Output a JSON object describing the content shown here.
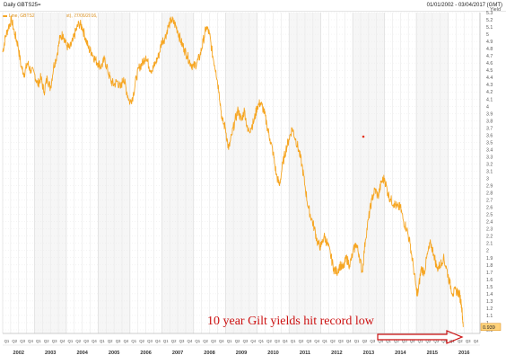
{
  "header": {
    "title": "Daily GBTS25=",
    "date_range": "01/01/2002 - 03/04/2017 (GMT)"
  },
  "legend": {
    "text": "Line, GBTS25=, Bid Yield(Last), 27/06/2016, 0.939"
  },
  "annotation": {
    "text": "10 year Gilt yields hit record low"
  },
  "colors": {
    "line": "#f6a623",
    "annotation": "#cc1111",
    "grid": "#e8e8e8",
    "axis_text": "#555555",
    "marker": "#ff6600"
  },
  "chart_data": {
    "type": "line",
    "title": "",
    "xlabel": "",
    "ylabel": "Yield",
    "x_range": [
      2002.0,
      2017.0
    ],
    "ylim": [
      0.85,
      5.3
    ],
    "y_ticks": [
      5.3,
      5.2,
      5.1,
      5.0,
      4.9,
      4.8,
      4.7,
      4.6,
      4.5,
      4.4,
      4.3,
      4.2,
      4.1,
      4.0,
      3.9,
      3.8,
      3.7,
      3.6,
      3.5,
      3.4,
      3.3,
      3.2,
      3.1,
      3.0,
      2.9,
      2.8,
      2.7,
      2.6,
      2.5,
      2.4,
      2.3,
      2.2,
      2.1,
      2.0,
      1.9,
      1.8,
      1.7,
      1.6,
      1.5,
      1.4,
      1.3,
      1.2,
      1.1,
      1.0,
      0.9
    ],
    "y_tick_labels": [
      "5.3",
      "5.2",
      "5.1",
      "5",
      "4.9",
      "4.8",
      "4.7",
      "4.6",
      "4.5",
      "4.4",
      "4.3",
      "4.2",
      "4.1",
      "4",
      "3.9",
      "3.8",
      "3.7",
      "3.6",
      "3.5",
      "3.4",
      "3.3",
      "3.2",
      "3.1",
      "3",
      "2.9",
      "2.8",
      "2.7",
      "2.6",
      "2.5",
      "2.4",
      "2.3",
      "2.2",
      "2.1",
      "2",
      "1.9",
      "1.8",
      "1.7",
      "1.6",
      "1.5",
      "1.4",
      "1.3",
      "1.2",
      "1.1",
      "1",
      "0.9"
    ],
    "years": [
      "2002",
      "2003",
      "2004",
      "2005",
      "2006",
      "2007",
      "2008",
      "2009",
      "2010",
      "2011",
      "2012",
      "2013",
      "2014",
      "2015",
      "2016"
    ],
    "quarter_labels": [
      "Q1",
      "Q2",
      "Q3",
      "Q4"
    ],
    "last_value_label": "0.939",
    "series": [
      {
        "name": "GBTS25=",
        "points": [
          [
            2002.0,
            4.75
          ],
          [
            2002.08,
            4.95
          ],
          [
            2002.18,
            5.1
          ],
          [
            2002.28,
            5.2
          ],
          [
            2002.38,
            5.0
          ],
          [
            2002.48,
            4.85
          ],
          [
            2002.58,
            4.55
          ],
          [
            2002.68,
            4.45
          ],
          [
            2002.78,
            4.6
          ],
          [
            2002.88,
            4.5
          ],
          [
            2003.0,
            4.45
          ],
          [
            2003.1,
            4.3
          ],
          [
            2003.2,
            4.4
          ],
          [
            2003.3,
            4.2
          ],
          [
            2003.4,
            4.4
          ],
          [
            2003.5,
            4.25
          ],
          [
            2003.6,
            4.55
          ],
          [
            2003.7,
            4.7
          ],
          [
            2003.8,
            4.95
          ],
          [
            2003.9,
            5.0
          ],
          [
            2004.0,
            4.85
          ],
          [
            2004.1,
            4.8
          ],
          [
            2004.2,
            4.9
          ],
          [
            2004.3,
            5.05
          ],
          [
            2004.4,
            5.15
          ],
          [
            2004.5,
            5.1
          ],
          [
            2004.6,
            4.95
          ],
          [
            2004.7,
            4.8
          ],
          [
            2004.8,
            4.75
          ],
          [
            2004.9,
            4.65
          ],
          [
            2005.0,
            4.6
          ],
          [
            2005.1,
            4.55
          ],
          [
            2005.2,
            4.65
          ],
          [
            2005.3,
            4.5
          ],
          [
            2005.4,
            4.35
          ],
          [
            2005.5,
            4.3
          ],
          [
            2005.6,
            4.35
          ],
          [
            2005.7,
            4.25
          ],
          [
            2005.8,
            4.4
          ],
          [
            2005.9,
            4.2
          ],
          [
            2006.0,
            4.05
          ],
          [
            2006.1,
            4.15
          ],
          [
            2006.2,
            4.4
          ],
          [
            2006.3,
            4.55
          ],
          [
            2006.4,
            4.6
          ],
          [
            2006.5,
            4.7
          ],
          [
            2006.6,
            4.55
          ],
          [
            2006.7,
            4.5
          ],
          [
            2006.8,
            4.6
          ],
          [
            2006.9,
            4.7
          ],
          [
            2007.0,
            4.9
          ],
          [
            2007.1,
            4.95
          ],
          [
            2007.2,
            5.1
          ],
          [
            2007.3,
            5.2
          ],
          [
            2007.4,
            5.15
          ],
          [
            2007.5,
            5.05
          ],
          [
            2007.6,
            4.9
          ],
          [
            2007.7,
            4.8
          ],
          [
            2007.8,
            4.7
          ],
          [
            2007.9,
            4.6
          ],
          [
            2008.0,
            4.55
          ],
          [
            2008.1,
            4.6
          ],
          [
            2008.2,
            4.7
          ],
          [
            2008.3,
            4.9
          ],
          [
            2008.4,
            5.1
          ],
          [
            2008.5,
            5.0
          ],
          [
            2008.6,
            4.7
          ],
          [
            2008.7,
            4.5
          ],
          [
            2008.8,
            4.2
          ],
          [
            2008.9,
            3.8
          ],
          [
            2009.0,
            3.7
          ],
          [
            2009.1,
            3.4
          ],
          [
            2009.2,
            3.6
          ],
          [
            2009.3,
            3.8
          ],
          [
            2009.4,
            3.95
          ],
          [
            2009.5,
            3.8
          ],
          [
            2009.6,
            3.95
          ],
          [
            2009.7,
            3.65
          ],
          [
            2009.8,
            3.7
          ],
          [
            2009.9,
            3.8
          ],
          [
            2010.0,
            4.0
          ],
          [
            2010.1,
            4.05
          ],
          [
            2010.2,
            3.95
          ],
          [
            2010.3,
            3.75
          ],
          [
            2010.4,
            3.55
          ],
          [
            2010.5,
            3.35
          ],
          [
            2010.6,
            3.05
          ],
          [
            2010.7,
            2.9
          ],
          [
            2010.8,
            3.2
          ],
          [
            2010.9,
            3.4
          ],
          [
            2011.0,
            3.55
          ],
          [
            2011.1,
            3.7
          ],
          [
            2011.2,
            3.55
          ],
          [
            2011.3,
            3.4
          ],
          [
            2011.4,
            3.2
          ],
          [
            2011.5,
            2.9
          ],
          [
            2011.6,
            2.6
          ],
          [
            2011.7,
            2.45
          ],
          [
            2011.8,
            2.3
          ],
          [
            2011.9,
            2.1
          ],
          [
            2012.0,
            2.05
          ],
          [
            2012.1,
            2.2
          ],
          [
            2012.2,
            2.1
          ],
          [
            2012.3,
            1.95
          ],
          [
            2012.4,
            1.75
          ],
          [
            2012.5,
            1.7
          ],
          [
            2012.6,
            1.8
          ],
          [
            2012.7,
            1.75
          ],
          [
            2012.8,
            1.9
          ],
          [
            2012.9,
            1.8
          ],
          [
            2013.0,
            1.95
          ],
          [
            2013.1,
            2.1
          ],
          [
            2013.2,
            1.95
          ],
          [
            2013.3,
            1.7
          ],
          [
            2013.4,
            2.15
          ],
          [
            2013.5,
            2.45
          ],
          [
            2013.6,
            2.7
          ],
          [
            2013.7,
            2.85
          ],
          [
            2013.8,
            2.75
          ],
          [
            2013.9,
            2.95
          ],
          [
            2014.0,
            3.0
          ],
          [
            2014.1,
            2.8
          ],
          [
            2014.2,
            2.7
          ],
          [
            2014.3,
            2.65
          ],
          [
            2014.4,
            2.6
          ],
          [
            2014.5,
            2.6
          ],
          [
            2014.6,
            2.4
          ],
          [
            2014.7,
            2.3
          ],
          [
            2014.8,
            2.1
          ],
          [
            2014.9,
            1.8
          ],
          [
            2015.0,
            1.45
          ],
          [
            2015.05,
            1.4
          ],
          [
            2015.15,
            1.75
          ],
          [
            2015.25,
            1.7
          ],
          [
            2015.35,
            1.95
          ],
          [
            2015.45,
            2.1
          ],
          [
            2015.55,
            1.95
          ],
          [
            2015.65,
            1.75
          ],
          [
            2015.75,
            1.8
          ],
          [
            2015.85,
            1.9
          ],
          [
            2015.95,
            1.75
          ],
          [
            2016.05,
            1.55
          ],
          [
            2016.15,
            1.4
          ],
          [
            2016.25,
            1.45
          ],
          [
            2016.35,
            1.4
          ],
          [
            2016.42,
            1.25
          ],
          [
            2016.48,
            0.94
          ]
        ]
      }
    ]
  }
}
